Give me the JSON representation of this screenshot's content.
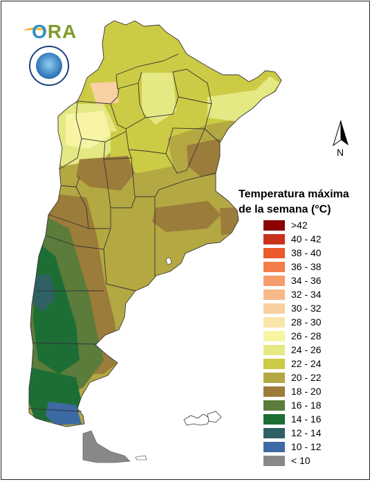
{
  "legend": {
    "title_line1": "Temperatura máxima",
    "title_line2": "de la semana (°C)",
    "items": [
      {
        "label": ">42",
        "color": "#8b0000"
      },
      {
        "label": "40 - 42",
        "color": "#c8321b"
      },
      {
        "label": "38 - 40",
        "color": "#ea5a2a"
      },
      {
        "label": "36 - 38",
        "color": "#f47d4a"
      },
      {
        "label": "34 - 36",
        "color": "#f59c6c"
      },
      {
        "label": "32 - 34",
        "color": "#f7b98a"
      },
      {
        "label": "30 - 32",
        "color": "#f9d0a1"
      },
      {
        "label": "28 - 30",
        "color": "#fae6a8"
      },
      {
        "label": "26 - 28",
        "color": "#f7f4a3"
      },
      {
        "label": "24 - 26",
        "color": "#e5e883"
      },
      {
        "label": "22 - 24",
        "color": "#cccb45"
      },
      {
        "label": "20 - 22",
        "color": "#b4a843"
      },
      {
        "label": "18 - 20",
        "color": "#9c7c3a"
      },
      {
        "label": "16 - 18",
        "color": "#5b7c3b"
      },
      {
        "label": "14 - 16",
        "color": "#1d6e35"
      },
      {
        "label": "12 - 14",
        "color": "#2f6164"
      },
      {
        "label": "10 - 12",
        "color": "#3d6aa3"
      },
      {
        "label": "< 10",
        "color": "#888888"
      }
    ]
  },
  "compass": {
    "north_label": "N"
  },
  "logo": {
    "text": "ORA"
  }
}
